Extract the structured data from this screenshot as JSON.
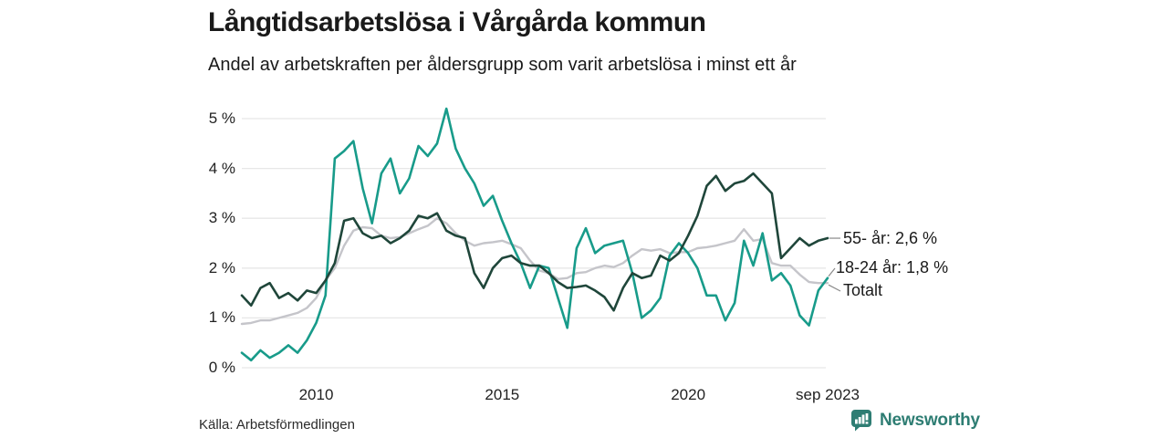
{
  "header": {
    "title": "Långtidsarbetslösa i Vårgårda kommun",
    "subtitle": "Andel av arbetskraften per åldersgrupp som varit arbetslösa i minst ett år"
  },
  "footer": {
    "source": "Källa: Arbetsförmedlingen",
    "brand": "Newsworthy",
    "brand_color": "#2e7d73"
  },
  "chart_data": {
    "type": "line",
    "title": "Långtidsarbetslösa i Vårgårda kommun",
    "subtitle": "Andel av arbetskraften per åldersgrupp som varit arbetslösa i minst ett år",
    "unit": "%",
    "grid": true,
    "grid_color": "#e7e7e7",
    "xlim": [
      2008,
      2023.75
    ],
    "ylim": [
      0,
      5
    ],
    "legend_position": "right-end-labels",
    "y_ticks": [
      {
        "value": 0,
        "label": "0 %"
      },
      {
        "value": 1,
        "label": "1 %"
      },
      {
        "value": 2,
        "label": "2 %"
      },
      {
        "value": 3,
        "label": "3 %"
      },
      {
        "value": 4,
        "label": "4 %"
      },
      {
        "value": 5,
        "label": "5 %"
      }
    ],
    "x_ticks": [
      {
        "value": 2010,
        "label": "2010"
      },
      {
        "value": 2015,
        "label": "2015"
      },
      {
        "value": 2020,
        "label": "2020"
      },
      {
        "value": 2023.75,
        "label": "sep 2023"
      }
    ],
    "x": [
      2008,
      2008.25,
      2008.5,
      2008.75,
      2009,
      2009.25,
      2009.5,
      2009.75,
      2010,
      2010.25,
      2010.5,
      2010.75,
      2011,
      2011.25,
      2011.5,
      2011.75,
      2012,
      2012.25,
      2012.5,
      2012.75,
      2013,
      2013.25,
      2013.5,
      2013.75,
      2014,
      2014.25,
      2014.5,
      2014.75,
      2015,
      2015.25,
      2015.5,
      2015.75,
      2016,
      2016.25,
      2016.5,
      2016.75,
      2017,
      2017.25,
      2017.5,
      2017.75,
      2018,
      2018.25,
      2018.5,
      2018.75,
      2019,
      2019.25,
      2019.5,
      2019.75,
      2020,
      2020.25,
      2020.5,
      2020.75,
      2021,
      2021.25,
      2021.5,
      2021.75,
      2022,
      2022.25,
      2022.5,
      2022.75,
      2023,
      2023.25,
      2023.5,
      2023.75
    ],
    "series": [
      {
        "name": "Totalt",
        "color": "#c5c5ca",
        "end_label": "Totalt",
        "values": [
          0.88,
          0.9,
          0.95,
          0.95,
          1.0,
          1.05,
          1.1,
          1.2,
          1.4,
          1.75,
          2.0,
          2.45,
          2.75,
          2.82,
          2.8,
          2.65,
          2.6,
          2.62,
          2.7,
          2.78,
          2.85,
          3.0,
          2.9,
          2.7,
          2.55,
          2.45,
          2.5,
          2.52,
          2.55,
          2.48,
          2.4,
          2.15,
          1.95,
          1.9,
          1.78,
          1.8,
          1.9,
          1.92,
          2.0,
          2.05,
          2.02,
          2.1,
          2.25,
          2.38,
          2.35,
          2.38,
          2.3,
          2.32,
          2.32,
          2.4,
          2.42,
          2.45,
          2.5,
          2.55,
          2.78,
          2.55,
          2.58,
          2.1,
          2.05,
          2.05,
          1.87,
          1.72,
          1.7,
          1.7
        ]
      },
      {
        "name": "18-24 år",
        "color": "#189b8a",
        "end_label": "18-24 år: 1,8 %",
        "last_value_display": "1,8 %",
        "values": [
          0.3,
          0.15,
          0.35,
          0.2,
          0.3,
          0.45,
          0.3,
          0.55,
          0.9,
          1.45,
          4.2,
          4.35,
          4.55,
          3.6,
          2.9,
          3.9,
          4.2,
          3.5,
          3.8,
          4.45,
          4.25,
          4.5,
          5.2,
          4.4,
          4.0,
          3.7,
          3.25,
          3.45,
          2.95,
          2.5,
          2.1,
          1.6,
          2.05,
          2.0,
          1.4,
          0.8,
          2.4,
          2.8,
          2.3,
          2.45,
          2.5,
          2.55,
          1.9,
          1.0,
          1.15,
          1.4,
          2.25,
          2.5,
          2.3,
          2.0,
          1.45,
          1.45,
          0.95,
          1.3,
          2.55,
          2.05,
          2.7,
          1.75,
          1.9,
          1.65,
          1.05,
          0.85,
          1.55,
          1.8
        ]
      },
      {
        "name": "55- år",
        "color": "#1f463a",
        "end_label": "55- år: 2,6 %",
        "last_value_display": "2,6 %",
        "values": [
          1.45,
          1.25,
          1.6,
          1.7,
          1.4,
          1.5,
          1.35,
          1.55,
          1.5,
          1.75,
          2.1,
          2.95,
          3.0,
          2.7,
          2.6,
          2.65,
          2.5,
          2.6,
          2.75,
          3.05,
          3.0,
          3.1,
          2.75,
          2.65,
          2.6,
          1.9,
          1.6,
          2.0,
          2.2,
          2.25,
          2.1,
          2.05,
          2.05,
          1.9,
          1.72,
          1.6,
          1.62,
          1.65,
          1.55,
          1.42,
          1.15,
          1.6,
          1.9,
          1.8,
          1.85,
          2.25,
          2.15,
          2.3,
          2.65,
          3.05,
          3.65,
          3.85,
          3.55,
          3.7,
          3.75,
          3.9,
          3.7,
          3.5,
          2.2,
          2.4,
          2.6,
          2.45,
          2.55,
          2.6
        ]
      }
    ]
  }
}
